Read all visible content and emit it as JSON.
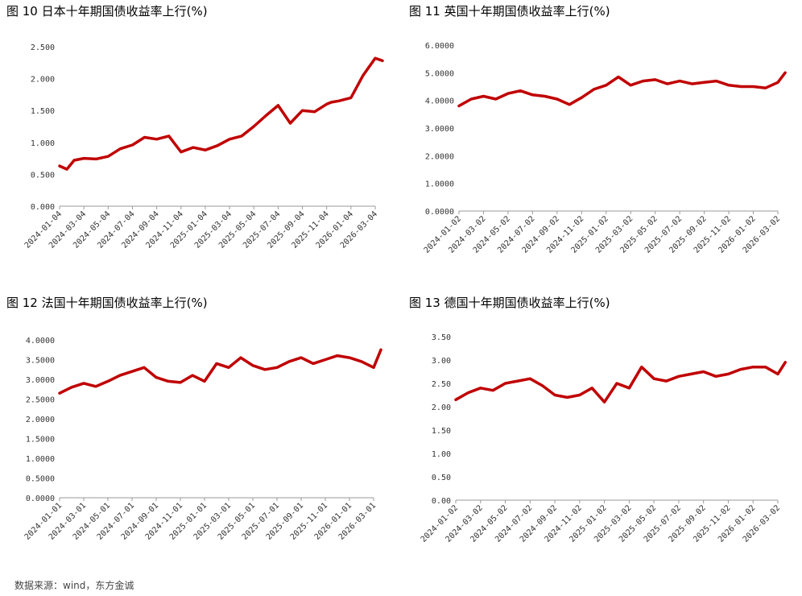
{
  "source": "数据来源：wind，东方金诚",
  "chart_data": [
    {
      "id": "jp",
      "type": "line",
      "title": "图 10  日本十年期国债收益率上行(%)",
      "yticks": [
        "0.000",
        "0.500",
        "1.000",
        "1.500",
        "2.000",
        "2.500"
      ],
      "ylim": [
        0,
        2.5
      ],
      "xticks": [
        "2024-01-04",
        "2024-03-04",
        "2024-05-04",
        "2024-07-04",
        "2024-09-04",
        "2024-11-04",
        "2025-01-04",
        "2025-03-04",
        "2025-05-04",
        "2025-07-04",
        "2025-09-04",
        "2025-11-04",
        "2026-01-04",
        "2026-03-04"
      ],
      "series": [
        {
          "color": "#c00000",
          "x": [
            0,
            0.3,
            0.6,
            1.0,
            1.5,
            2.0,
            2.5,
            3.0,
            3.5,
            4.0,
            4.5,
            5.0,
            5.5,
            6.0,
            6.5,
            7.0,
            7.5,
            8.0,
            8.5,
            9.0,
            9.5,
            10.0,
            10.5,
            11.0,
            11.2,
            11.5,
            12.0,
            12.5,
            13.0,
            13.3
          ],
          "values": [
            0.63,
            0.58,
            0.72,
            0.75,
            0.74,
            0.78,
            0.9,
            0.96,
            1.08,
            1.05,
            1.1,
            0.85,
            0.92,
            0.88,
            0.95,
            1.05,
            1.1,
            1.25,
            1.42,
            1.58,
            1.3,
            1.5,
            1.48,
            1.6,
            1.63,
            1.65,
            1.7,
            2.05,
            2.32,
            2.28
          ]
        }
      ]
    },
    {
      "id": "uk",
      "type": "line",
      "title": "图 11  英国十年期国债收益率上行(%)",
      "yticks": [
        "0.0000",
        "1.0000",
        "2.0000",
        "3.0000",
        "4.0000",
        "5.0000",
        "6.0000"
      ],
      "ylim": [
        0,
        6
      ],
      "xticks": [
        "2024-01-02",
        "2024-03-02",
        "2024-05-02",
        "2024-07-02",
        "2024-09-02",
        "2024-11-02",
        "2025-01-02",
        "2025-03-02",
        "2025-05-02",
        "2025-07-02",
        "2025-09-02",
        "2025-11-02",
        "2026-01-02",
        "2026-03-02"
      ],
      "series": [
        {
          "color": "#c00000",
          "x": [
            0,
            0.5,
            1.0,
            1.5,
            2.0,
            2.5,
            3.0,
            3.5,
            4.0,
            4.5,
            5.0,
            5.5,
            6.0,
            6.5,
            7.0,
            7.5,
            8.0,
            8.5,
            9.0,
            9.5,
            10.0,
            10.5,
            11.0,
            11.5,
            12.0,
            12.5,
            13.0,
            13.3
          ],
          "values": [
            3.8,
            4.05,
            4.15,
            4.05,
            4.25,
            4.35,
            4.2,
            4.15,
            4.05,
            3.85,
            4.1,
            4.4,
            4.55,
            4.85,
            4.55,
            4.7,
            4.75,
            4.6,
            4.7,
            4.6,
            4.65,
            4.7,
            4.55,
            4.5,
            4.5,
            4.45,
            4.65,
            5.0
          ]
        }
      ]
    },
    {
      "id": "fr",
      "type": "line",
      "title": "图 12 法国十年期国债收益率上行(%)",
      "yticks": [
        "0.0000",
        "0.5000",
        "1.0000",
        "1.5000",
        "2.0000",
        "2.5000",
        "3.0000",
        "3.5000",
        "4.0000"
      ],
      "ylim": [
        0,
        4
      ],
      "xticks": [
        "2024-01-01",
        "2024-03-01",
        "2024-05-01",
        "2024-07-01",
        "2024-09-01",
        "2024-11-01",
        "2025-01-01",
        "2025-03-01",
        "2025-05-01",
        "2025-07-01",
        "2025-09-01",
        "2025-11-01",
        "2026-01-01",
        "2026-03-01"
      ],
      "series": [
        {
          "color": "#c00000",
          "x": [
            0,
            0.5,
            1.0,
            1.5,
            2.0,
            2.5,
            3.0,
            3.5,
            4.0,
            4.5,
            5.0,
            5.5,
            6.0,
            6.5,
            7.0,
            7.5,
            8.0,
            8.5,
            9.0,
            9.5,
            10.0,
            10.5,
            11.0,
            11.5,
            12.0,
            12.5,
            13.0,
            13.3
          ],
          "values": [
            2.65,
            2.8,
            2.9,
            2.82,
            2.95,
            3.1,
            3.2,
            3.3,
            3.05,
            2.95,
            2.92,
            3.1,
            2.95,
            3.4,
            3.3,
            3.55,
            3.35,
            3.25,
            3.3,
            3.45,
            3.55,
            3.4,
            3.5,
            3.6,
            3.55,
            3.45,
            3.3,
            3.75
          ]
        }
      ]
    },
    {
      "id": "de",
      "type": "line",
      "title": "图 13 德国十年期国债收益率上行(%)",
      "yticks": [
        "0.00",
        "0.50",
        "1.00",
        "1.50",
        "2.00",
        "2.50",
        "3.00",
        "3.50"
      ],
      "ylim": [
        0,
        3.5
      ],
      "xticks": [
        "2024-01-02",
        "2024-03-02",
        "2024-05-02",
        "2024-07-02",
        "2024-09-02",
        "2024-11-02",
        "2025-01-02",
        "2025-03-02",
        "2025-05-02",
        "2025-07-02",
        "2025-09-02",
        "2025-11-02",
        "2026-01-02",
        "2026-03-02"
      ],
      "series": [
        {
          "color": "#c00000",
          "x": [
            0,
            0.5,
            1.0,
            1.5,
            2.0,
            2.5,
            3.0,
            3.5,
            4.0,
            4.5,
            5.0,
            5.5,
            6.0,
            6.5,
            7.0,
            7.5,
            8.0,
            8.5,
            9.0,
            9.5,
            10.0,
            10.5,
            11.0,
            11.5,
            12.0,
            12.5,
            13.0,
            13.3
          ],
          "values": [
            2.15,
            2.3,
            2.4,
            2.35,
            2.5,
            2.55,
            2.6,
            2.45,
            2.25,
            2.2,
            2.25,
            2.4,
            2.1,
            2.5,
            2.4,
            2.85,
            2.6,
            2.55,
            2.65,
            2.7,
            2.75,
            2.65,
            2.7,
            2.8,
            2.85,
            2.85,
            2.7,
            2.95
          ]
        }
      ]
    }
  ]
}
